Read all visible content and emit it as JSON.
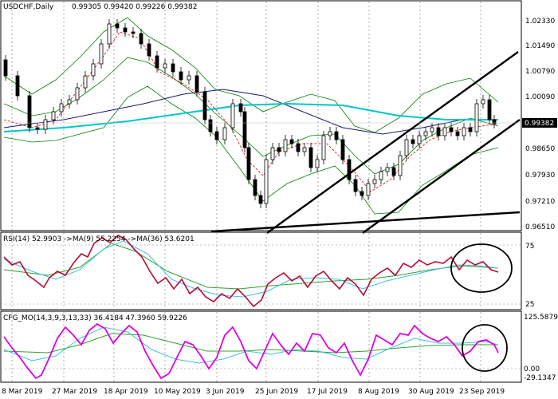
{
  "main_header": {
    "symbol": "USDCHF,Daily",
    "ohlc": "0.99305 0.99420 0.99226 0.99382"
  },
  "rsi_header": {
    "label": "RSI(14) 52.9903 ->MA(9) 55.2254 ->MA(36) 53.6201"
  },
  "cfg_header": {
    "label": "CFG_MO(14,3,9,3,13,33) 36.4184 47.3960 59.9226"
  },
  "price_axis": {
    "labels": [
      "1.02330",
      "1.01490",
      "1.00790",
      "1.00090",
      "0.98650",
      "0.97930",
      "0.97210",
      "0.96510"
    ],
    "current": "0.99382",
    "current_color": "#000000"
  },
  "rsi_axis": {
    "labels": [
      "75",
      "25"
    ]
  },
  "cfg_axis": {
    "labels": [
      "125.5879",
      "0.00",
      "-29.1347"
    ]
  },
  "time_axis": {
    "labels": [
      "8 Mar 2019",
      "27 Mar 2019",
      "18 Apr 2019",
      "10 May 2019",
      "3 Jun 2019",
      "25 Jun 2019",
      "17 Jul 2019",
      "8 Aug 2019",
      "30 Aug 2019",
      "23 Sep 2019"
    ]
  },
  "colors": {
    "bull_candle": "#008000",
    "bear_candle": "#cc0000",
    "ema_cyan": "#00c8c8",
    "ma_navy": "#191970",
    "ma_red": "#e00000",
    "bollinger": "#008000",
    "rsi_line": "#b80a32",
    "rsi_ma_fast": "#40c0e0",
    "rsi_ma_slow": "#30a030",
    "cfg_line": "#e000e0",
    "annotation": "#000000"
  }
}
